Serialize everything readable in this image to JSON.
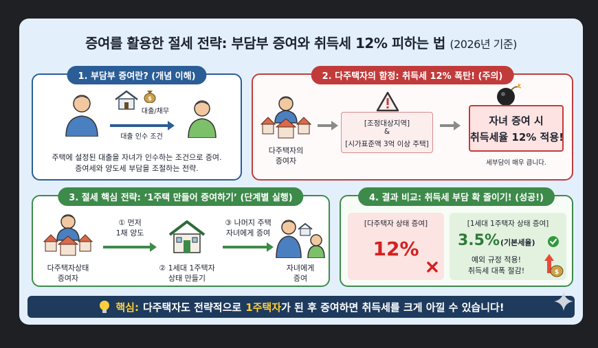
{
  "title": {
    "main": "증여를 활용한 절세 전략: 부담부 증여와 취득세 12% 피하는 법",
    "sub": "(2026년 기준)"
  },
  "panel1": {
    "head": "1. 부담부 증여란? (개념 이해)",
    "tag": "대출/채무",
    "arrow_label": "대출 인수 조건",
    "desc1": "주택에 설정된 대출을 자녀가 인수하는 조건으로 증여.",
    "desc2": "증여세와 양도세 부담을 조절하는 전략."
  },
  "panel2": {
    "head": "2. 다주택자의 함정: 취득세 12% 폭탄! (주의)",
    "person_label1": "다주택자의",
    "person_label2": "증여자",
    "cond1": "[조정대상지역]",
    "cond_and": "&",
    "cond2": "[시가표준액 3억 이상 주택]",
    "alert1": "자녀 증여 시",
    "alert2": "취득세율 12% 적용!",
    "note": "세부담이 매우 큽니다."
  },
  "panel3": {
    "head": "3. 절세 핵심 전략: ‘1주택 만들어 증여하기’ (단계별 실행)",
    "step1a": "① 먼저",
    "step1b": "1채 양도",
    "step2a": "② 1세대 1주택자",
    "step2b": "상태 만들기",
    "step3a": "③ 나머지 주택",
    "step3b": "자녀에게 증여",
    "giver1": "다주택자상태",
    "giver2": "증여자",
    "recv1": "자녀에게",
    "recv2": "증여"
  },
  "panel4": {
    "head": "4. 결과 비교: 취득세 부담 확 줄이기! (성공!)",
    "left_label": "[다주택자 상태 증여]",
    "left_value": "12%",
    "right_label": "[1세대 1주택자 상태 증여]",
    "right_value": "3.5%",
    "right_note": "(기본세율)",
    "right_desc1": "예외 규정 적용!",
    "right_desc2": "취득세 대폭 절감!"
  },
  "footer": {
    "prefix": "핵심:",
    "part1": "다주택자도 전략적으로",
    "highlight": "1주택자",
    "part2": "가 된 후 증여하면 취득세를 크게 아낄 수 있습니다!"
  },
  "colors": {
    "blue": "#2b5d96",
    "red": "#c23b3b",
    "green": "#3d8a4a",
    "navy": "#1e3a5c"
  }
}
